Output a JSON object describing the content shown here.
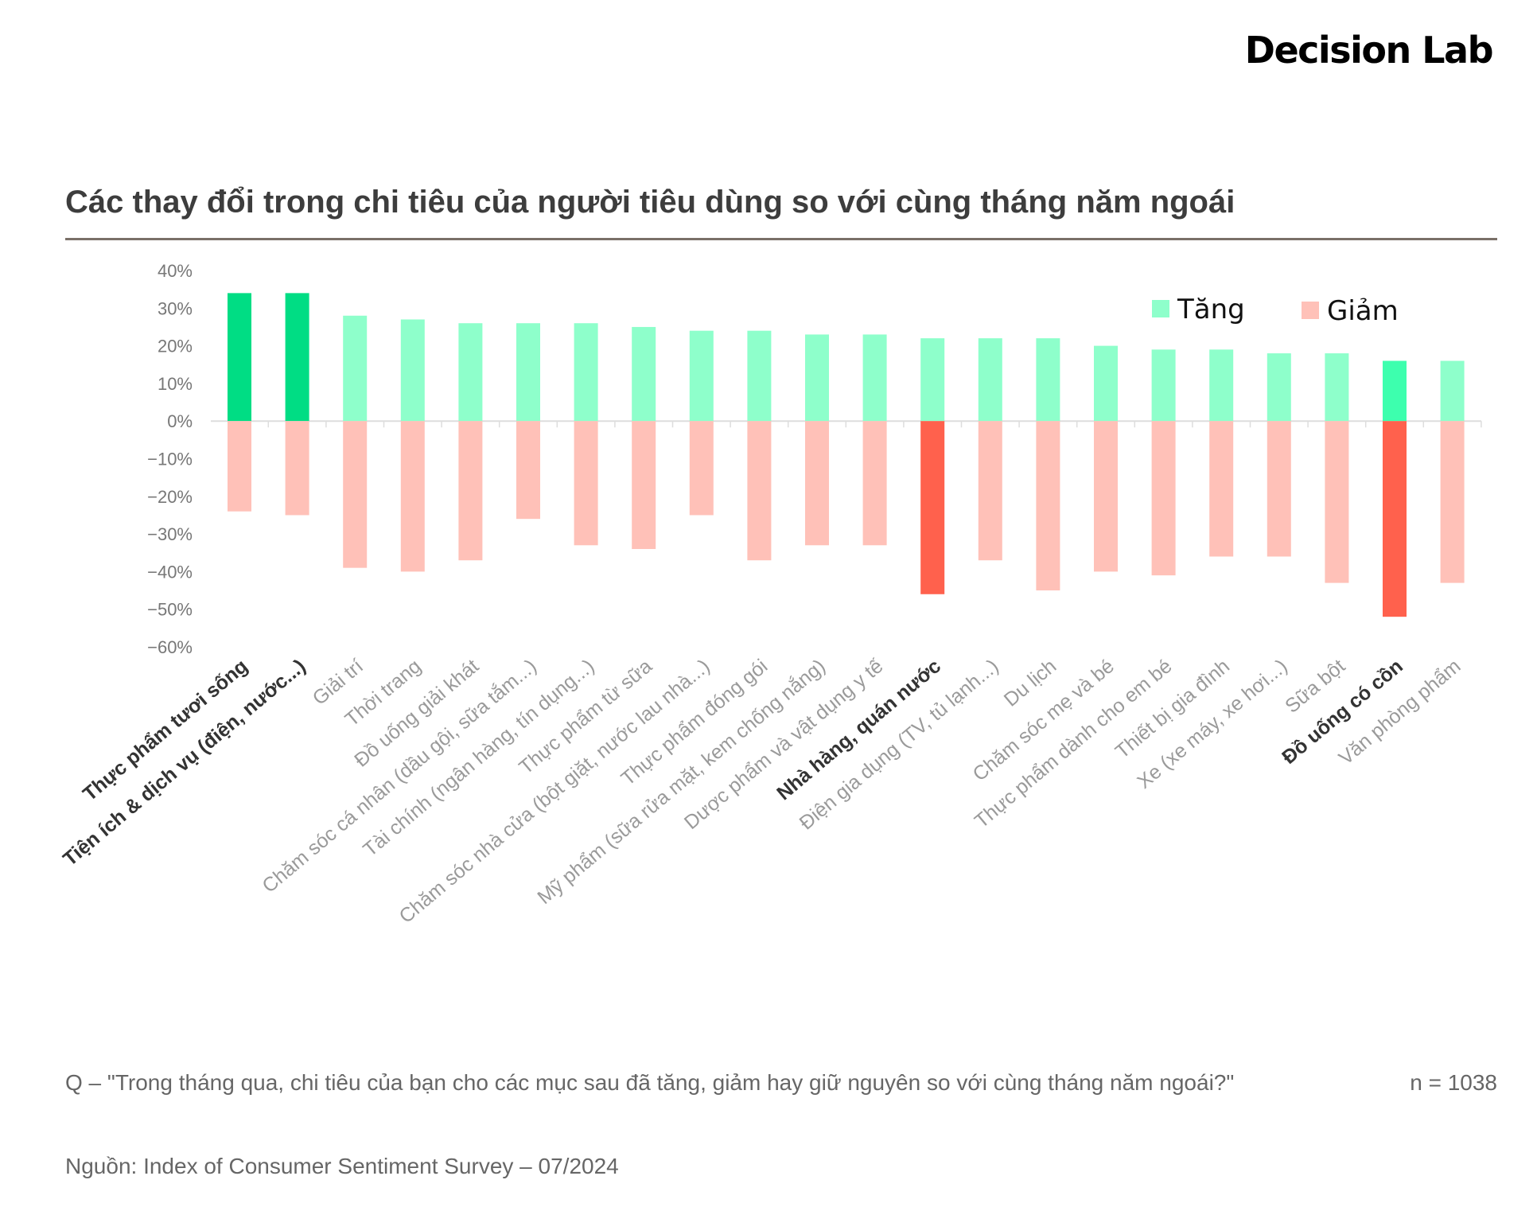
{
  "brand": "Decision Lab",
  "colors": {
    "increase": "#8effcb",
    "increase_highlight": "#00dd84",
    "increase_alcohol": "#3dffae",
    "decrease": "#ffc1b8",
    "decrease_highlight": "#ff614d",
    "axis_text": "#777777",
    "label_text": "#9a9a9a",
    "label_bold": "#333333",
    "zero_line": "#dddddd"
  },
  "chart_data": {
    "type": "bar",
    "title": "Các thay đổi trong chi tiêu của người tiêu dùng so với cùng tháng năm ngoái",
    "ylim": [
      -60,
      40
    ],
    "yticks": [
      40,
      30,
      20,
      10,
      0,
      -10,
      -20,
      -30,
      -40,
      -50,
      -60
    ],
    "ytick_labels": [
      "40%",
      "30%",
      "20%",
      "10%",
      "0%",
      "−10%",
      "−20%",
      "−30%",
      "−40%",
      "−50%",
      "−60%"
    ],
    "categories": [
      "Thực phẩm tươi sống",
      "Tiện ích & dịch vụ (điện, nước...)",
      "Giải trí",
      "Thời trang",
      "Đồ uống giải khát",
      "Chăm sóc cá nhân (dầu gội, sữa tắm...)",
      "Tài chính (ngân hàng, tín dụng...)",
      "Thực phẩm từ sữa",
      "Chăm sóc nhà cửa (bột giặt, nước lau nhà...)",
      "Thực phẩm đóng gói",
      "Mỹ phẩm (sữa rửa mặt, kem chống nắng)",
      "Dược phẩm và vật dụng y tế",
      "Nhà hàng, quán nước",
      "Điện gia dụng (TV, tủ lạnh...)",
      "Du lịch",
      "Chăm sóc mẹ và bé",
      "Thực phẩm dành cho em bé",
      "Thiết bị gia đình",
      "Xe (xe máy, xe hơi...)",
      "Sữa bột",
      "Đồ uống có cồn",
      "Văn phòng phẩm"
    ],
    "bold_categories": [
      0,
      1,
      12,
      20
    ],
    "series": [
      {
        "name": "Tăng",
        "values": [
          34,
          34,
          28,
          27,
          26,
          26,
          26,
          25,
          24,
          24,
          23,
          23,
          22,
          22,
          22,
          20,
          19,
          19,
          18,
          18,
          16,
          16
        ]
      },
      {
        "name": "Giảm",
        "values": [
          -24,
          -25,
          -39,
          -40,
          -37,
          -26,
          -33,
          -34,
          -25,
          -37,
          -33,
          -33,
          -46,
          -37,
          -45,
          -40,
          -41,
          -36,
          -36,
          -43,
          -52,
          -43
        ]
      }
    ],
    "highlight_increase": [
      0,
      1
    ],
    "highlight_decrease": [
      12,
      20
    ],
    "alcohol_increase": [
      20
    ],
    "legend": {
      "position": "top-right",
      "items": [
        "Tăng",
        "Giảm"
      ]
    }
  },
  "footer": {
    "question": "Q – \"Trong tháng qua, chi tiêu của bạn cho các mục sau đã tăng, giảm hay giữ nguyên so với cùng tháng năm ngoái?\"",
    "n": "n = 1038",
    "source": "Nguồn: Index of Consumer Sentiment Survey – 07/2024"
  }
}
